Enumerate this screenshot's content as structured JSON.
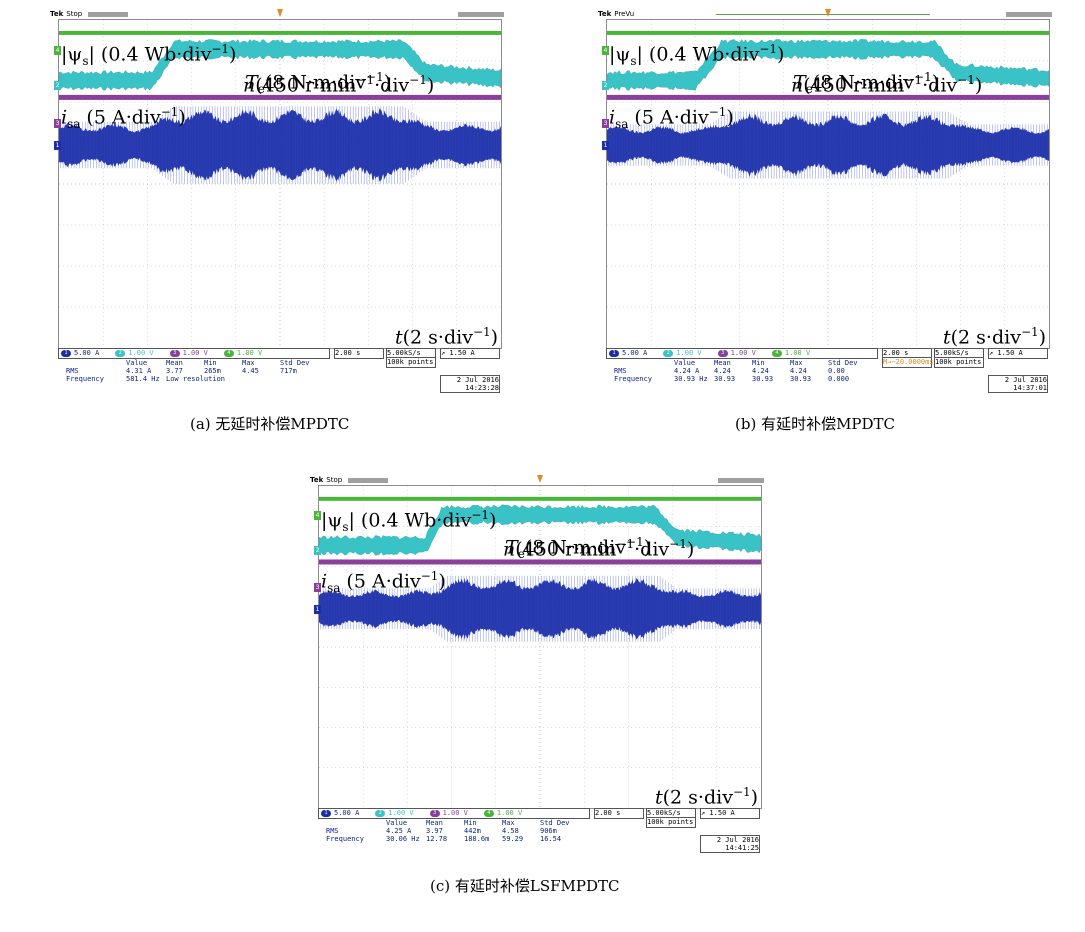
{
  "colors": {
    "flux": "#49b639",
    "torque": "#39c3c7",
    "speed": "#8a3f9a",
    "current": "#1c2ea6",
    "grid": "#b8b8b8",
    "trigger": "#e08a2a"
  },
  "labels": {
    "flux_pre": "|ψ",
    "flux_sub": "s",
    "flux_post": "| (0.4 Wb·div",
    "flux_sup": "−1",
    "flux_close": ")",
    "torque_pre": "T",
    "torque_sub": "e",
    "torque_post": "(8 N·m·div",
    "torque_sup": "−1",
    "torque_close": ")",
    "speed_pre": "n",
    "speed_post": "(450 r·min",
    "speed_sup1": "−1",
    "speed_mid": "·div",
    "speed_sup2": "−1",
    "speed_close": ")",
    "current_pre": "i",
    "current_sub": "sa",
    "current_post": " (5 A·div",
    "current_sup": "−1",
    "current_close": ")",
    "time_pre": "t",
    "time_post": "(2 s·div",
    "time_sup": "−1",
    "time_close": ")"
  },
  "chart_data": [
    {
      "type": "line",
      "caption": "(a) 无延时补偿MPDTC",
      "status": "Stop",
      "brand": "Tek",
      "series": [
        {
          "name": "|ψs| (0.4 Wb·div−1)",
          "level": "constant"
        },
        {
          "name": "Te(8 N·m·div−1)",
          "x": [
            0,
            2.1,
            2.6,
            7.8,
            8.3,
            10
          ],
          "y_div": [
            -1.0,
            -1.0,
            0.6,
            0.6,
            -0.6,
            -0.9
          ]
        },
        {
          "name": "n(450 r·min−1·div−1)",
          "level": "constant"
        },
        {
          "name": "isa (5 A·div−1)",
          "x": [
            0,
            2.1,
            2.6,
            7.8,
            8.3,
            10
          ],
          "amp_div": [
            0.9,
            0.9,
            1.5,
            1.5,
            0.9,
            0.9
          ]
        }
      ],
      "channels": {
        "ch1": "5.00 A",
        "ch2": "1.00 V",
        "ch3": "1.00 V",
        "ch4": "1.00 V"
      },
      "timebase": "2.00 s",
      "sample": "5.00kS/s",
      "points": "100k points",
      "trigger": "1.50 A",
      "meas_header": [
        "Value",
        "Mean",
        "Min",
        "Max",
        "Std Dev"
      ],
      "rms": [
        "RMS",
        "4.31 A",
        "3.77",
        "265m",
        "4.45",
        "717m"
      ],
      "freq": [
        "Frequency",
        "581.4 Hz",
        "Low resolution",
        "",
        "",
        ""
      ],
      "date": "2 Jul  2016",
      "time": "14:23:28",
      "delay": ""
    },
    {
      "type": "line",
      "caption": "(b) 有延时补偿MPDTC",
      "status": "PreVu",
      "brand": "Tek",
      "series": [
        {
          "name": "|ψs| (0.4 Wb·div−1)",
          "level": "constant"
        },
        {
          "name": "Te(8 N·m·div−1)",
          "x": [
            0,
            2.0,
            2.6,
            7.4,
            7.9,
            10
          ],
          "y_div": [
            -1.0,
            -1.0,
            0.6,
            0.6,
            -0.6,
            -0.9
          ]
        },
        {
          "name": "n(450 r·min−1·div−1)",
          "level": "constant"
        },
        {
          "name": "isa (5 A·div−1)",
          "x": [
            0,
            2.3,
            2.8,
            7.7,
            8.2,
            10
          ],
          "amp_div": [
            0.8,
            0.8,
            1.3,
            1.3,
            0.8,
            0.8
          ]
        }
      ],
      "channels": {
        "ch1": "5.00 A",
        "ch2": "1.00 V",
        "ch3": "1.00 V",
        "ch4": "1.00 V"
      },
      "timebase": "2.00 s",
      "sample": "5.00kS/s",
      "points": "100k points",
      "trigger": "1.50 A",
      "meas_header": [
        "Value",
        "Mean",
        "Min",
        "Max",
        "Std Dev"
      ],
      "rms": [
        "RMS",
        "4.24 A",
        "4.24",
        "4.24",
        "4.24",
        "0.00"
      ],
      "freq": [
        "Frequency",
        "30.93 Hz",
        "30.93",
        "30.93",
        "30.93",
        "0.000"
      ],
      "date": "2 Jul  2016",
      "time": "14:37:01",
      "delay": "M→−20.0000ms"
    },
    {
      "type": "line",
      "caption": "(c) 有延时补偿LSFMPDTC",
      "status": "Stop",
      "brand": "Tek",
      "series": [
        {
          "name": "|ψs| (0.4 Wb·div−1)",
          "level": "constant"
        },
        {
          "name": "Te (8 N·m·div−1)",
          "x": [
            0,
            2.4,
            2.8,
            7.6,
            8.1,
            10
          ],
          "y_div": [
            -1.0,
            -1.0,
            0.6,
            0.6,
            -0.6,
            -0.9
          ]
        },
        {
          "name": "n (450 r·min−1·div−1)",
          "level": "constant"
        },
        {
          "name": "isa (5 A·div−1)",
          "x": [
            0,
            2.5,
            2.9,
            7.7,
            8.1,
            10
          ],
          "amp_div": [
            0.8,
            0.8,
            1.3,
            1.3,
            0.8,
            0.8
          ]
        }
      ],
      "channels": {
        "ch1": "5.00 A",
        "ch2": "1.00 V",
        "ch3": "1.00 V",
        "ch4": "1.00 V"
      },
      "timebase": "2.00 s",
      "sample": "5.00kS/s",
      "points": "100k points",
      "trigger": "1.50 A",
      "meas_header": [
        "Value",
        "Mean",
        "Min",
        "Max",
        "Std Dev"
      ],
      "rms": [
        "RMS",
        "4.25 A",
        "3.97",
        "442m",
        "4.58",
        "906m"
      ],
      "freq": [
        "Frequency",
        "30.06 Hz",
        "12.78",
        "188.6m",
        "59.29",
        "16.54"
      ],
      "date": "2 Jul  2016",
      "time": "14:41:25",
      "delay": ""
    }
  ]
}
